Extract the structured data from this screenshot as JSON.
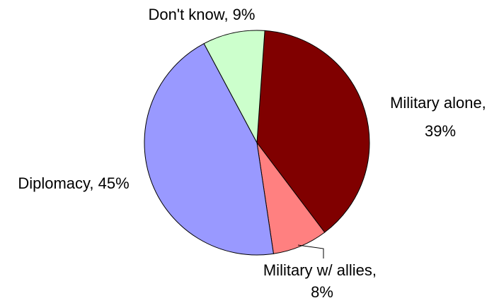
{
  "chart_data": {
    "type": "pie",
    "title": "",
    "slices": [
      {
        "label": "Military alone",
        "value": 39,
        "color": "#800000",
        "label_lines": [
          "Military alone,",
          "39%"
        ]
      },
      {
        "label": "Military w/ allies",
        "value": 8,
        "color": "#ff8080",
        "label_lines": [
          "Military w/ allies,",
          "8%"
        ]
      },
      {
        "label": "Diplomacy",
        "value": 45,
        "color": "#9999ff",
        "label_lines": [
          "Diplomacy, 45%"
        ]
      },
      {
        "label": "Don't know",
        "value": 9,
        "color": "#ccffcc",
        "label_lines": [
          "Don't know, 9%"
        ]
      }
    ],
    "start_angle_deg": 4,
    "direction": "clockwise",
    "legend": "none"
  }
}
